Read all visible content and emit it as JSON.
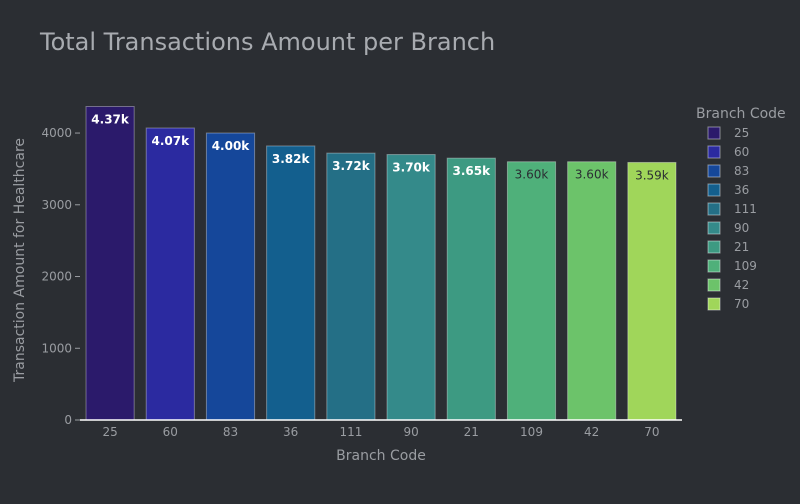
{
  "chart_data": {
    "type": "bar",
    "title": "Total Transactions Amount per Branch",
    "xlabel": "Branch Code",
    "ylabel": "Transaction Amount for Healthcare",
    "categories": [
      "25",
      "60",
      "83",
      "36",
      "111",
      "90",
      "21",
      "109",
      "42",
      "70"
    ],
    "values": [
      4370,
      4070,
      4000,
      3820,
      3720,
      3700,
      3650,
      3600,
      3600,
      3590
    ],
    "data_labels": [
      "4.37k",
      "4.07k",
      "4.00k",
      "3.82k",
      "3.72k",
      "3.70k",
      "3.65k",
      "3.60k",
      "3.60k",
      "3.59k"
    ],
    "colors": [
      "#2b1a6b",
      "#2b2aa0",
      "#15479a",
      "#135f8e",
      "#246f86",
      "#348a8a",
      "#3d9a82",
      "#4fb07a",
      "#6cc36a",
      "#a0d65a"
    ],
    "label_colors": [
      "#ffffff",
      "#ffffff",
      "#ffffff",
      "#ffffff",
      "#ffffff",
      "#ffffff",
      "#ffffff",
      "#2b2e33",
      "#2b2e33",
      "#2b2e33"
    ],
    "ylim": [
      0,
      4600
    ],
    "yticks": [
      0,
      1000,
      2000,
      3000,
      4000
    ],
    "legend": {
      "title": "Branch Code",
      "position": "right"
    },
    "grid": false
  },
  "colors": {
    "background": "#2b2e33",
    "text": "#9a9da2",
    "title": "#a8abb0"
  }
}
